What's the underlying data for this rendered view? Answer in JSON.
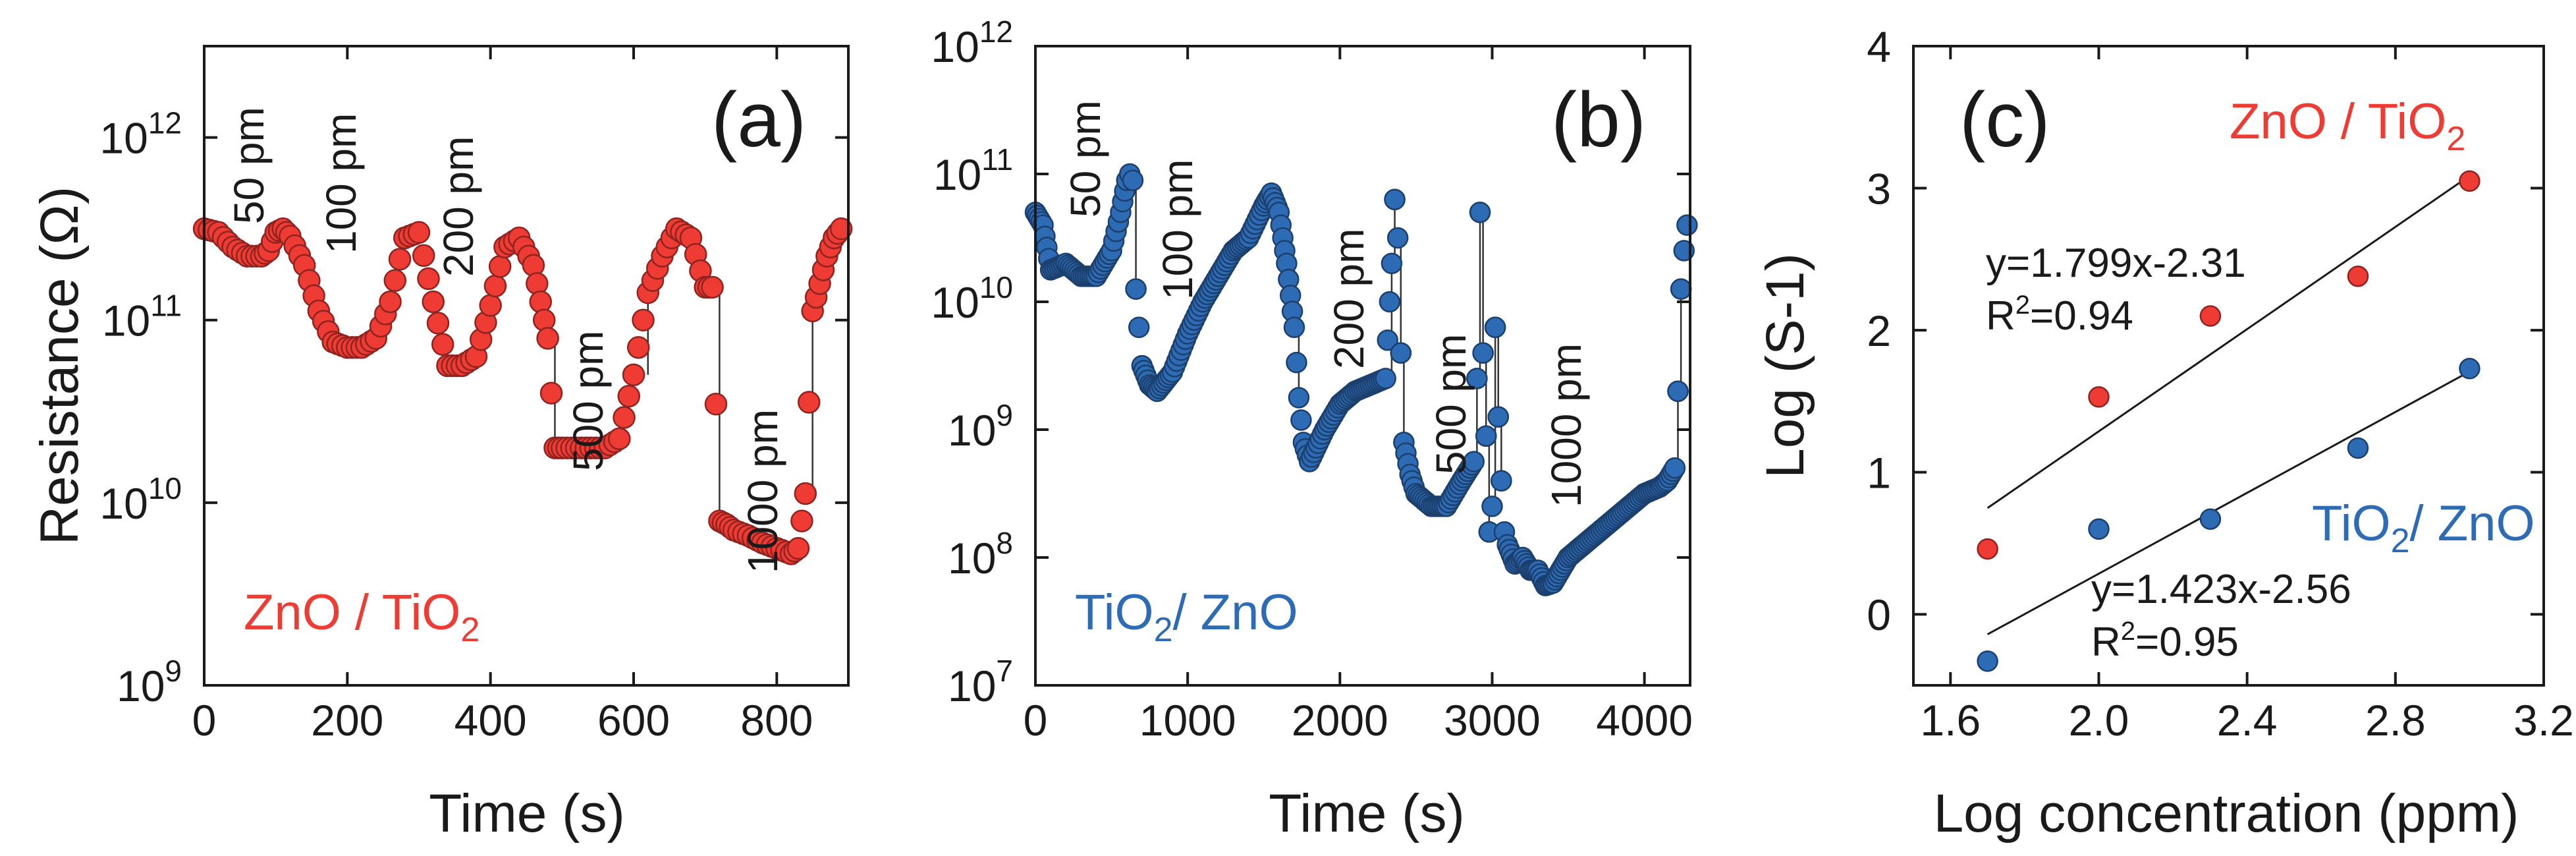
{
  "chart_data": [
    {
      "type": "scatter",
      "panel_label": "(a)",
      "xlabel": "Time (s)",
      "ylabel": "Resistance (Ω)",
      "xlim": [
        0,
        900
      ],
      "xticks": [
        "0",
        "200",
        "400",
        "600",
        "800"
      ],
      "ylim_log10": [
        9,
        12.5
      ],
      "yticks": [
        {
          "base": "10",
          "exp": "9"
        },
        {
          "base": "10",
          "exp": "10"
        },
        {
          "base": "10",
          "exp": "11"
        },
        {
          "base": "10",
          "exp": "12"
        }
      ],
      "legend": {
        "prefix": "ZnO / TiO",
        "sub": "2",
        "color": "#ee3b33"
      },
      "marker_color": "#ee3b33",
      "annotations": [
        "50 pm",
        "100 pm",
        "200 pm",
        "500 pm",
        "1000 pm"
      ],
      "series": [
        {
          "name": "ZnO / TiO2",
          "x": [
            0,
            20,
            40,
            60,
            80,
            90,
            100,
            110,
            120,
            140,
            160,
            180,
            200,
            220,
            240,
            260,
            280,
            300,
            320,
            340,
            360,
            380,
            400,
            420,
            440,
            460,
            470,
            480,
            490,
            500,
            520,
            540,
            560,
            580,
            600,
            620,
            640,
            660,
            680,
            700,
            710,
            720,
            730,
            740,
            760,
            780,
            800,
            820,
            830,
            840,
            850,
            860,
            870,
            880,
            890
          ],
          "y_log10": [
            11.5,
            11.48,
            11.4,
            11.35,
            11.35,
            11.38,
            11.48,
            11.5,
            11.46,
            11.3,
            11.05,
            10.88,
            10.85,
            10.85,
            10.9,
            11.1,
            11.45,
            11.48,
            11.1,
            10.75,
            10.75,
            10.8,
            11.08,
            11.4,
            11.45,
            11.3,
            11.1,
            10.9,
            10.3,
            10.3,
            10.3,
            10.3,
            10.3,
            10.35,
            10.7,
            11.15,
            11.35,
            11.5,
            11.45,
            11.18,
            11.18,
            9.9,
            9.88,
            9.85,
            9.82,
            9.78,
            9.75,
            9.72,
            9.75,
            10.05,
            11.05,
            11.2,
            11.35,
            11.45,
            11.5
          ]
        }
      ]
    },
    {
      "type": "scatter",
      "panel_label": "(b)",
      "xlabel": "Time (s)",
      "ylabel": "",
      "xlim": [
        0,
        4300
      ],
      "xticks": [
        "0",
        "1000",
        "2000",
        "3000",
        "4000"
      ],
      "ylim_log10": [
        7,
        12
      ],
      "yticks": [
        {
          "base": "10",
          "exp": "7"
        },
        {
          "base": "10",
          "exp": "8"
        },
        {
          "base": "10",
          "exp": "9"
        },
        {
          "base": "10",
          "exp": "10"
        },
        {
          "base": "10",
          "exp": "11"
        },
        {
          "base": "10",
          "exp": "12"
        }
      ],
      "legend": {
        "prefix": "TiO",
        "sub": "2",
        "suffix": "/ ZnO",
        "color": "#2e6bb5"
      },
      "marker_color": "#2e6bb5",
      "annotations": [
        "50 pm",
        "100 pm",
        "200 pm",
        "500 pm",
        "1000 pm"
      ],
      "series": [
        {
          "name": "TiO2/ ZnO",
          "x": [
            0,
            50,
            100,
            200,
            300,
            400,
            500,
            560,
            600,
            620,
            640,
            660,
            680,
            700,
            750,
            800,
            900,
            1000,
            1100,
            1200,
            1300,
            1400,
            1500,
            1550,
            1600,
            1650,
            1700,
            1730,
            1760,
            1800,
            1900,
            2000,
            2100,
            2200,
            2300,
            2340,
            2360,
            2380,
            2400,
            2420,
            2460,
            2500,
            2600,
            2700,
            2800,
            2880,
            2900,
            2920,
            2940,
            2960,
            2980,
            3000,
            3020,
            3040,
            3060,
            3080,
            3100,
            3150,
            3200,
            3250,
            3300,
            3350,
            3400,
            3450,
            3500,
            3600,
            3700,
            3800,
            3900,
            4000,
            4100,
            4150,
            4200,
            4220,
            4240,
            4260,
            4280
          ],
          "y_log10": [
            10.7,
            10.6,
            10.25,
            10.3,
            10.2,
            10.2,
            10.4,
            10.7,
            10.95,
            11.0,
            10.95,
            10.1,
            9.8,
            9.5,
            9.35,
            9.3,
            9.45,
            9.75,
            10.0,
            10.2,
            10.4,
            10.5,
            10.75,
            10.85,
            10.7,
            10.3,
            9.8,
            9.25,
            8.9,
            8.75,
            9.0,
            9.2,
            9.3,
            9.35,
            9.4,
            10.3,
            10.8,
            10.5,
            9.6,
            8.9,
            8.65,
            8.5,
            8.4,
            8.4,
            8.6,
            8.75,
            9.4,
            10.7,
            9.6,
            8.95,
            8.2,
            8.4,
            9.8,
            9.1,
            8.6,
            8.2,
            8.1,
            7.95,
            8.0,
            7.9,
            7.9,
            7.78,
            7.8,
            7.9,
            8.0,
            8.1,
            8.2,
            8.3,
            8.4,
            8.5,
            8.55,
            8.6,
            8.7,
            9.3,
            10.1,
            10.4,
            10.6
          ]
        }
      ]
    },
    {
      "type": "scatter",
      "panel_label": "(c)",
      "xlabel": "Log concentration (ppm)",
      "ylabel": "Log (S-1)",
      "xlim": [
        1.5,
        3.2
      ],
      "xticks": [
        "1.6",
        "2.0",
        "2.4",
        "2.8",
        "3.2"
      ],
      "ylim": [
        -0.5,
        4
      ],
      "yticks": [
        "0",
        "1",
        "2",
        "3",
        "4"
      ],
      "series": [
        {
          "name": "ZnO / TiO2",
          "color": "#ee3b33",
          "x": [
            1.7,
            2.0,
            2.301,
            2.699,
            3.0
          ],
          "y": [
            0.46,
            1.53,
            2.1,
            2.38,
            3.05
          ],
          "fit": {
            "slope": 1.799,
            "intercept": -2.31,
            "x_range": [
              1.7,
              3.0
            ]
          }
        },
        {
          "name": "TiO2/ ZnO",
          "color": "#2e6bb5",
          "x": [
            1.7,
            2.0,
            2.301,
            2.699,
            3.0
          ],
          "y": [
            -0.33,
            0.6,
            0.67,
            1.17,
            1.73
          ],
          "fit": {
            "slope": 1.423,
            "intercept": -2.56,
            "x_range": [
              1.7,
              3.0
            ]
          }
        }
      ],
      "legend_top": {
        "prefix": "ZnO / TiO",
        "sub": "2",
        "color": "#ee3b33"
      },
      "legend_bottom": {
        "prefix": "TiO",
        "sub": "2",
        "suffix": "/ ZnO",
        "color": "#2e6bb5"
      },
      "eq_top": {
        "line1": "y=1.799x-2.31",
        "r2_prefix": "R",
        "r2_sup": "2",
        "r2_suffix": "=0.94"
      },
      "eq_bottom": {
        "line1": "y=1.423x-2.56",
        "r2_prefix": "R",
        "r2_sup": "2",
        "r2_suffix": "=0.95"
      }
    }
  ]
}
